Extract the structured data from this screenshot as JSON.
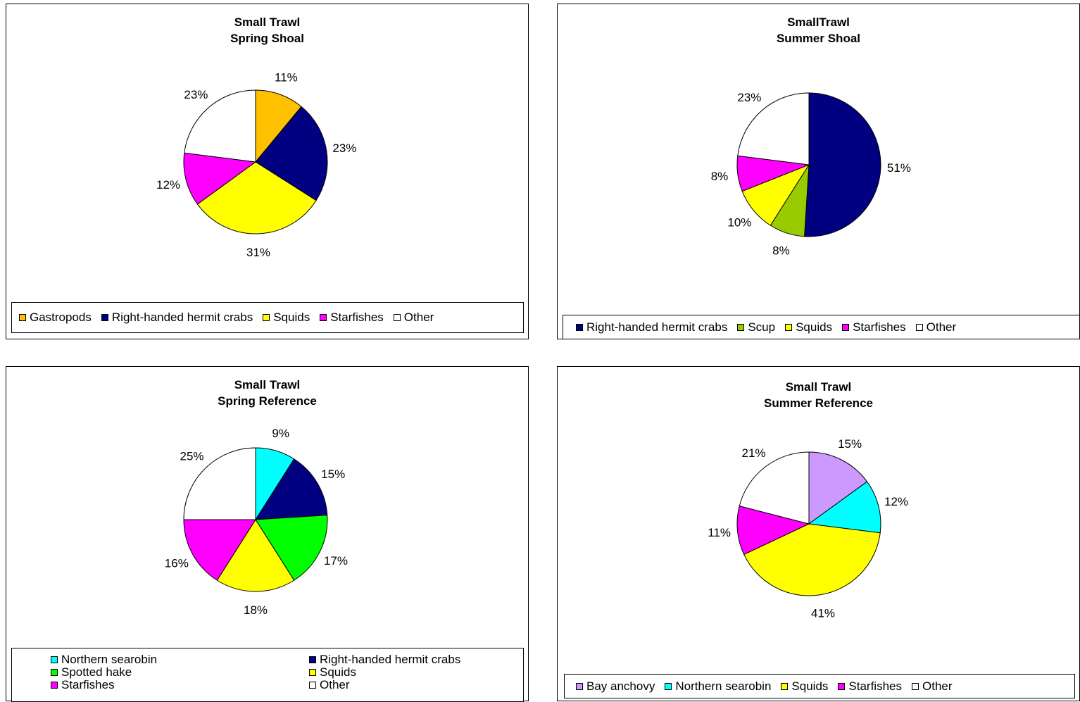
{
  "chart_data": [
    {
      "type": "pie",
      "title": [
        "Small Trawl",
        "Spring Shoal"
      ],
      "slices": [
        {
          "label": "Gastropods",
          "value": 11,
          "text": "11%",
          "color": "#FFC000"
        },
        {
          "label": "Right-handed hermit crabs",
          "value": 23,
          "text": "23%",
          "color": "#000080"
        },
        {
          "label": "Squids",
          "value": 31,
          "text": "31%",
          "color": "#FFFF00"
        },
        {
          "label": "Starfishes",
          "value": 12,
          "text": "12%",
          "color": "#FF00FF"
        },
        {
          "label": "Other",
          "value": 23,
          "text": "23%",
          "color": "#FFFFFF"
        }
      ],
      "legend": [
        "Gastropods",
        "Right-handed hermit crabs",
        "Squids",
        "Starfishes",
        "Other"
      ],
      "legend_placement": "bottom"
    },
    {
      "type": "pie",
      "title": [
        "SmallTrawl",
        "Summer Shoal"
      ],
      "slices": [
        {
          "label": "Right-handed hermit crabs",
          "value": 51,
          "text": "51%",
          "color": "#000080"
        },
        {
          "label": "Scup",
          "value": 8,
          "text": "8%",
          "color": "#99CC00"
        },
        {
          "label": "Squids",
          "value": 10,
          "text": "10%",
          "color": "#FFFF00"
        },
        {
          "label": "Starfishes",
          "value": 8,
          "text": "8%",
          "color": "#FF00FF"
        },
        {
          "label": "Other",
          "value": 23,
          "text": "23%",
          "color": "#FFFFFF"
        }
      ],
      "legend": [
        "Right-handed hermit crabs",
        "Scup",
        "Squids",
        "Starfishes",
        "Other"
      ],
      "legend_placement": "bottom"
    },
    {
      "type": "pie",
      "title": [
        "Small Trawl",
        "Spring Reference"
      ],
      "slices": [
        {
          "label": "Northern searobin",
          "value": 9,
          "text": "9%",
          "color": "#00FFFF"
        },
        {
          "label": "Right-handed hermit crabs",
          "value": 15,
          "text": "15%",
          "color": "#000080"
        },
        {
          "label": "Spotted hake",
          "value": 17,
          "text": "17%",
          "color": "#00FF00"
        },
        {
          "label": "Squids",
          "value": 18,
          "text": "18%",
          "color": "#FFFF00"
        },
        {
          "label": "Starfishes",
          "value": 16,
          "text": "16%",
          "color": "#FF00FF"
        },
        {
          "label": "Other",
          "value": 25,
          "text": "25%",
          "color": "#FFFFFF"
        }
      ],
      "legend": [
        "Northern searobin",
        "Right-handed hermit crabs",
        "Spotted hake",
        "Squids",
        "Starfishes",
        "Other"
      ],
      "legend_placement": "bottom"
    },
    {
      "type": "pie",
      "title": [
        "Small Trawl",
        "Summer Reference"
      ],
      "slices": [
        {
          "label": "Bay anchovy",
          "value": 15,
          "text": "15%",
          "color": "#CC99FF"
        },
        {
          "label": "Northern searobin",
          "value": 12,
          "text": "12%",
          "color": "#00FFFF"
        },
        {
          "label": "Squids",
          "value": 41,
          "text": "41%",
          "color": "#FFFF00"
        },
        {
          "label": "Starfishes",
          "value": 11,
          "text": "11%",
          "color": "#FF00FF"
        },
        {
          "label": "Other",
          "value": 21,
          "text": "21%",
          "color": "#FFFFFF"
        }
      ],
      "legend": [
        "Bay anchovy",
        "Northern searobin",
        "Squids",
        "Starfishes",
        "Other"
      ],
      "legend_placement": "bottom"
    }
  ]
}
